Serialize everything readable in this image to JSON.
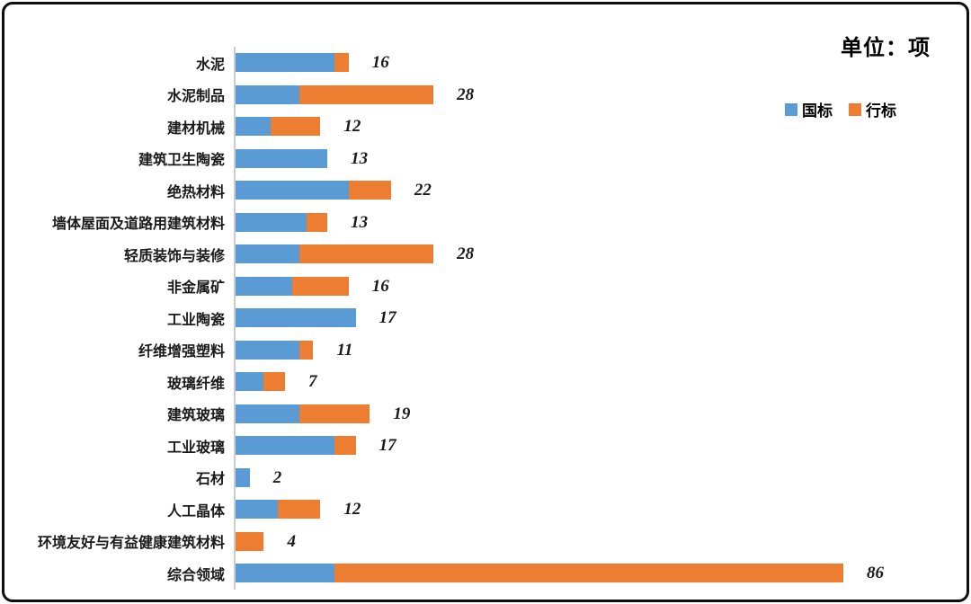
{
  "unit_title": "单位：项",
  "legend": [
    {
      "label": "国标",
      "color": "#5B9BD5"
    },
    {
      "label": "行标",
      "color": "#ED7D31"
    }
  ],
  "chart_data": {
    "type": "bar",
    "orientation": "horizontal",
    "stacked": true,
    "title": "单位：项",
    "unit": "项",
    "grid": false,
    "legend_position": "top-right",
    "xlim": [
      0,
      86
    ],
    "categories": [
      "水泥",
      "水泥制品",
      "建材机械",
      "建筑卫生陶瓷",
      "绝热材料",
      "墙体屋面及道路用建筑材料",
      "轻质装饰与装修",
      "非金属矿",
      "工业陶瓷",
      "纤维增强塑料",
      "玻璃纤维",
      "建筑玻璃",
      "工业玻璃",
      "石材",
      "人工晶体",
      "环境友好与有益健康建筑材料",
      "综合领域"
    ],
    "series": [
      {
        "name": "国标",
        "color": "#5B9BD5",
        "values": [
          14,
          9,
          5,
          13,
          16,
          10,
          9,
          8,
          17,
          9,
          4,
          9,
          14,
          2,
          6,
          0,
          14
        ]
      },
      {
        "name": "行标",
        "color": "#ED7D31",
        "values": [
          2,
          19,
          7,
          0,
          6,
          3,
          19,
          8,
          0,
          2,
          3,
          10,
          3,
          0,
          6,
          4,
          72
        ]
      }
    ],
    "totals": [
      16,
      28,
      12,
      13,
      22,
      13,
      28,
      16,
      17,
      11,
      7,
      19,
      17,
      2,
      12,
      4,
      86
    ]
  }
}
